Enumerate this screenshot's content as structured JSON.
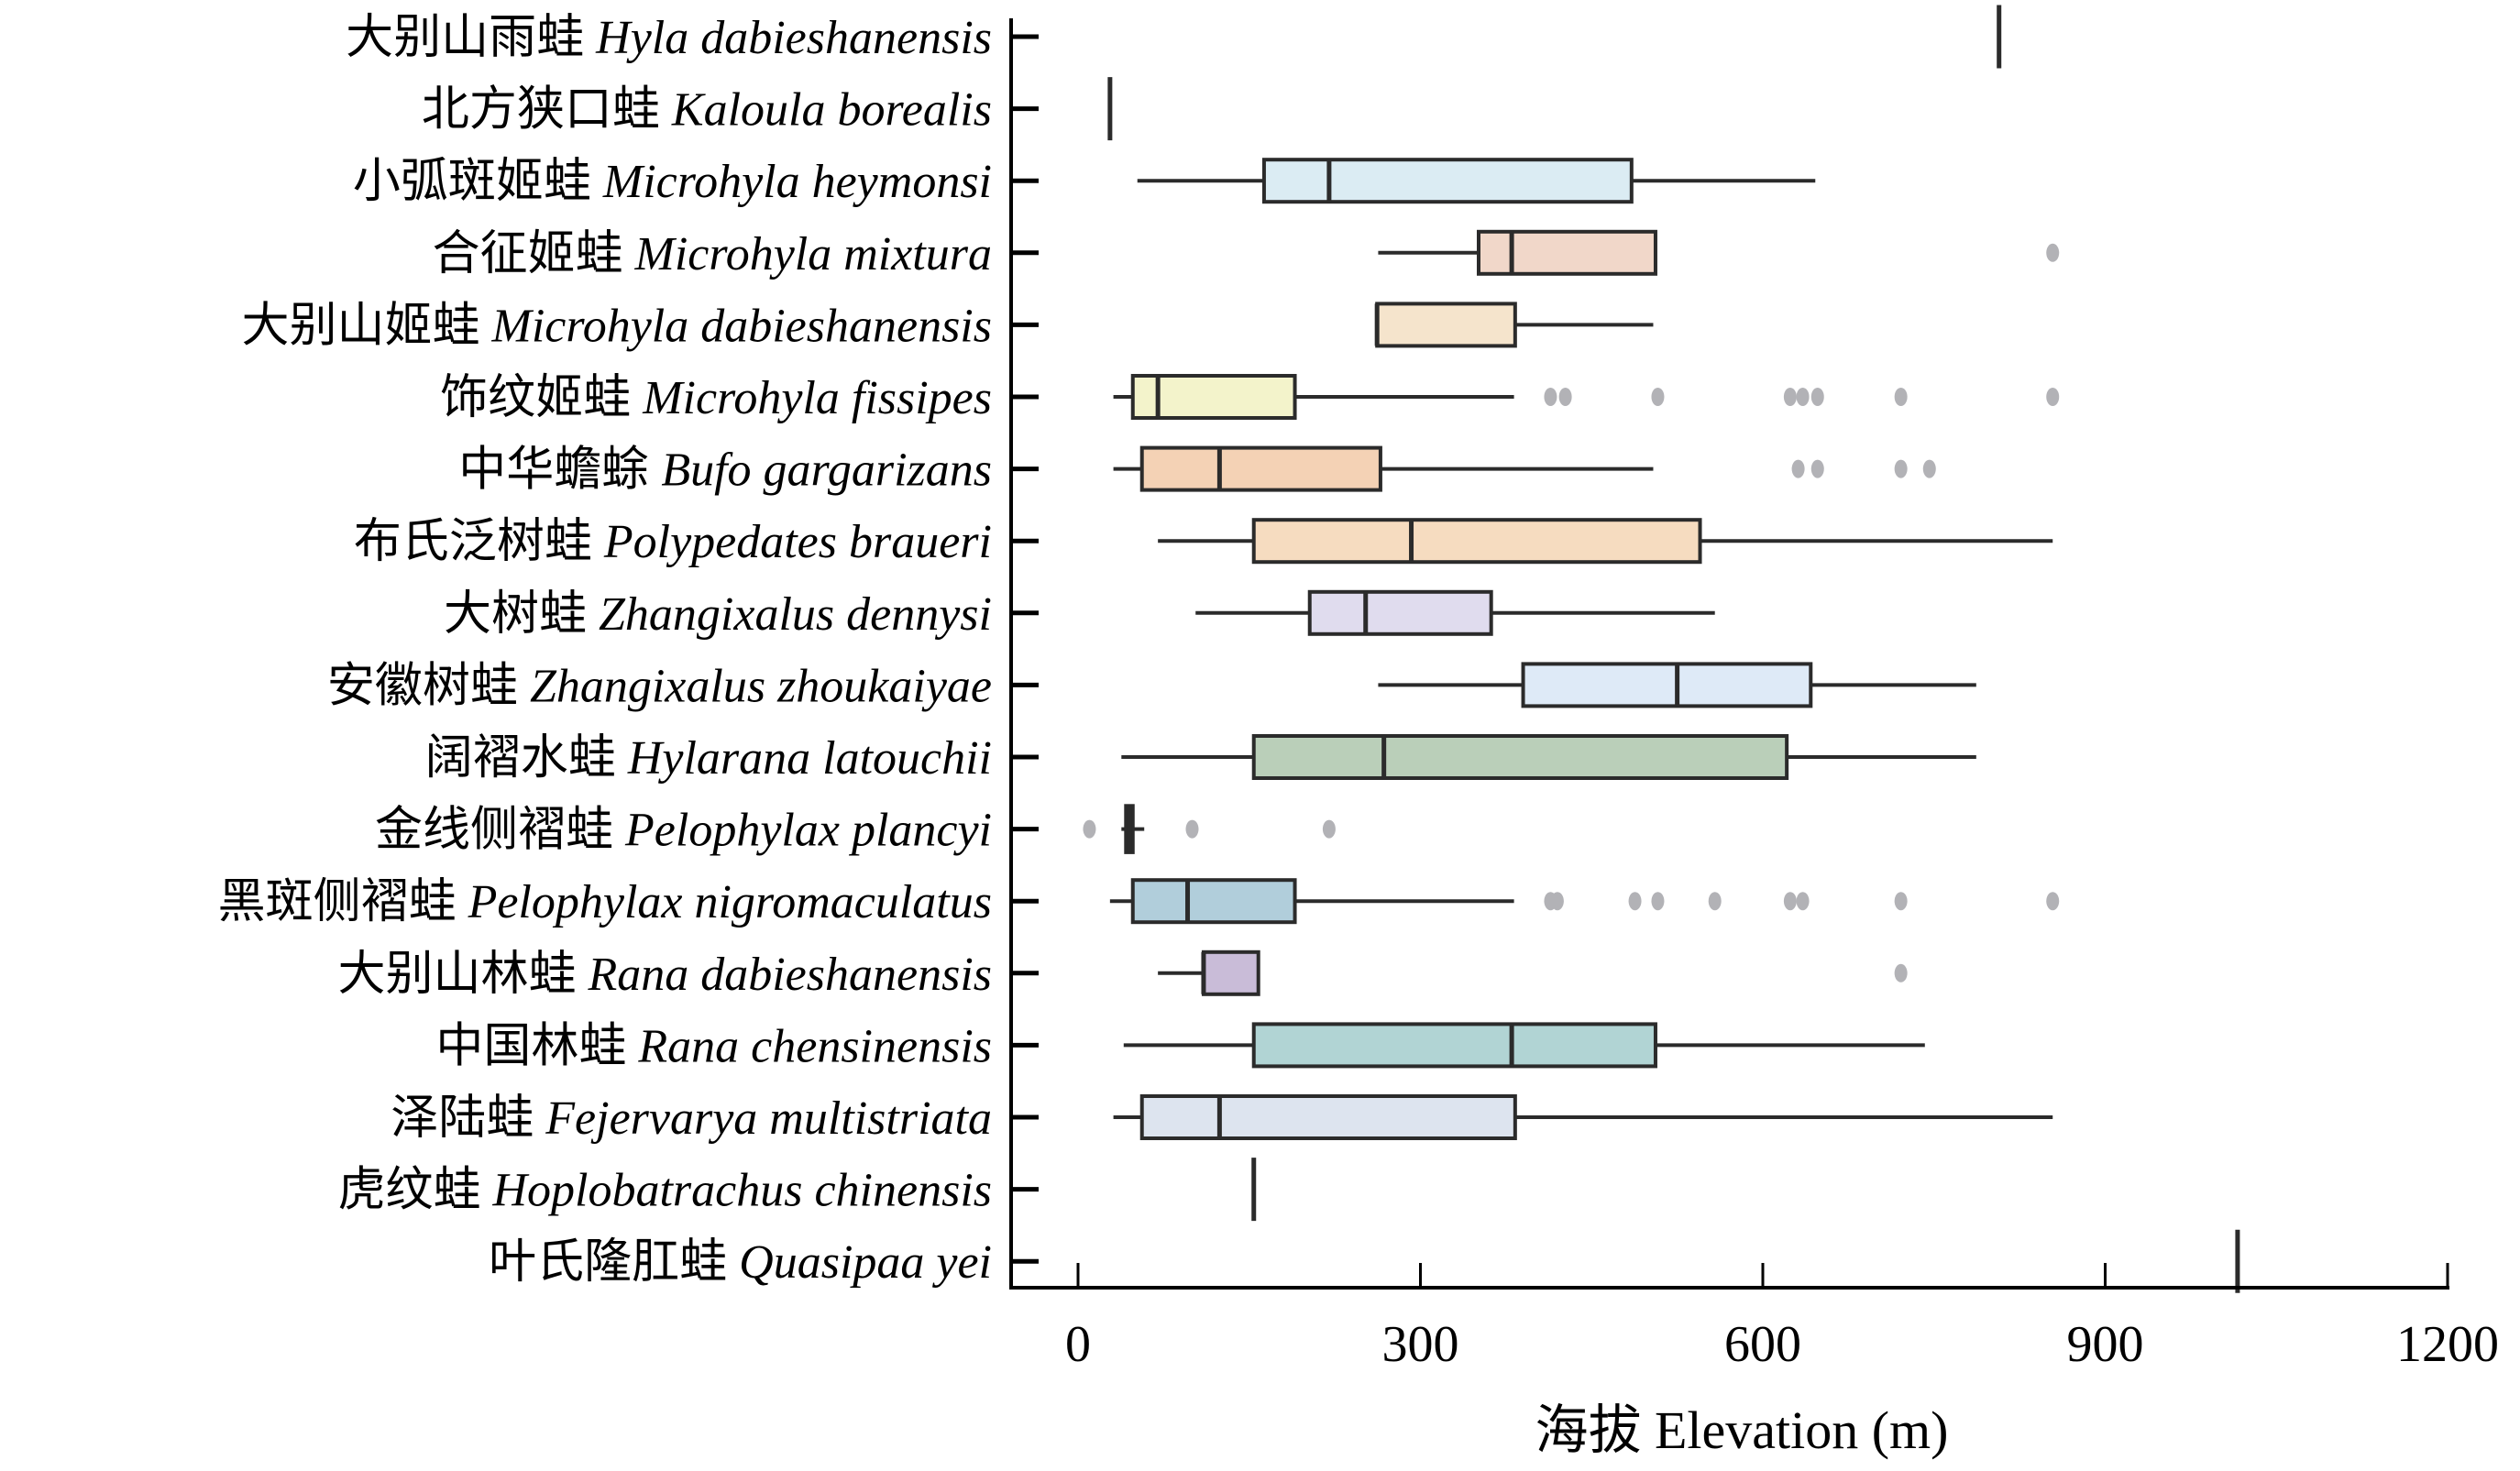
{
  "chart_data": {
    "type": "boxplot",
    "orientation": "horizontal",
    "xlabel": "海拔 Elevation (m)",
    "xlim": [
      -40,
      1200
    ],
    "xticks": [
      0,
      300,
      600,
      900,
      1200
    ],
    "xtick_labels": [
      "0",
      "300",
      "600",
      "900",
      "1200"
    ],
    "grid": false,
    "series": [
      {
        "cn": "大别山雨蛙",
        "latin": "Hyla dabieshanensis",
        "min": 807,
        "q1": 807,
        "median": 807,
        "q3": 807,
        "max": 807,
        "outliers": [],
        "color": "#ffffff"
      },
      {
        "cn": "北方狭口蛙",
        "latin": "Kaloula borealis",
        "min": 28,
        "q1": 28,
        "median": 28,
        "q3": 28,
        "max": 28,
        "outliers": [],
        "color": "#ffffff"
      },
      {
        "cn": "小弧斑姬蛙",
        "latin": "Microhyla heymonsi",
        "min": 52,
        "q1": 163,
        "median": 220,
        "q3": 485,
        "max": 646,
        "outliers": [],
        "color": "#dbecf3"
      },
      {
        "cn": "合征姬蛙",
        "latin": "Microhyla mixtura",
        "min": 263,
        "q1": 351,
        "median": 380,
        "q3": 506,
        "max": 506,
        "outliers": [
          854
        ],
        "color": "#f1d7c9"
      },
      {
        "cn": "大别山姬蛙",
        "latin": "Microhyla dabieshanensis",
        "min": 262,
        "q1": 262,
        "median": 262,
        "q3": 383,
        "max": 504,
        "outliers": [],
        "color": "#f5e4cc"
      },
      {
        "cn": "饰纹姬蛙",
        "latin": "Microhyla fissipes",
        "min": 31,
        "q1": 48,
        "median": 70,
        "q3": 190,
        "max": 382,
        "outliers": [
          414,
          427,
          508,
          624,
          635,
          648,
          721,
          854
        ],
        "color": "#f3f3cb"
      },
      {
        "cn": "中华蟾蜍",
        "latin": "Bufo gargarizans",
        "min": 31,
        "q1": 56,
        "median": 124,
        "q3": 265,
        "max": 504,
        "outliers": [
          631,
          648,
          721,
          746
        ],
        "color": "#f4d2b5"
      },
      {
        "cn": "布氏泛树蛙",
        "latin": "Polypedates braueri",
        "min": 70,
        "q1": 154,
        "median": 292,
        "q3": 545,
        "max": 854,
        "outliers": [],
        "color": "#f6dcc0"
      },
      {
        "cn": "大树蛙",
        "latin": "Zhangixalus dennysi",
        "min": 103,
        "q1": 203,
        "median": 252,
        "q3": 362,
        "max": 558,
        "outliers": [],
        "color": "#e0dcee"
      },
      {
        "cn": "安徽树蛙",
        "latin": "Zhangixalus zhoukaiyae",
        "min": 263,
        "q1": 390,
        "median": 525,
        "q3": 642,
        "max": 787,
        "outliers": [],
        "color": "#deeaf7"
      },
      {
        "cn": "阔褶水蛙",
        "latin": "Hylarana latouchii",
        "min": 38,
        "q1": 154,
        "median": 268,
        "q3": 621,
        "max": 787,
        "outliers": [],
        "color": "#bacfb9"
      },
      {
        "cn": "金线侧褶蛙",
        "latin": "Pelophylax plancyi",
        "min": 38,
        "q1": 42,
        "median": 45,
        "q3": 48,
        "max": 58,
        "outliers": [
          10,
          100,
          220
        ],
        "color": "#ffffff"
      },
      {
        "cn": "黑斑侧褶蛙",
        "latin": "Pelophylax nigromaculatus",
        "min": 28,
        "q1": 48,
        "median": 96,
        "q3": 190,
        "max": 382,
        "outliers": [
          414,
          420,
          488,
          508,
          558,
          624,
          635,
          721,
          854
        ],
        "color": "#b1cedb"
      },
      {
        "cn": "大别山林蛙",
        "latin": "Rana dabieshanensis",
        "min": 70,
        "q1": 110,
        "median": 110,
        "q3": 158,
        "max": 158,
        "outliers": [
          721
        ],
        "color": "#c9bcd8"
      },
      {
        "cn": "中国林蛙",
        "latin": "Rana chensinensis",
        "min": 40,
        "q1": 154,
        "median": 380,
        "q3": 506,
        "max": 742,
        "outliers": [],
        "color": "#b1d4d4"
      },
      {
        "cn": "泽陆蛙",
        "latin": "Fejervarya multistriata",
        "min": 31,
        "q1": 56,
        "median": 124,
        "q3": 383,
        "max": 854,
        "outliers": [],
        "color": "#dde4ef"
      },
      {
        "cn": "虎纹蛙",
        "latin": "Hoplobatrachus chinensis",
        "min": 154,
        "q1": 154,
        "median": 154,
        "q3": 154,
        "max": 154,
        "outliers": [],
        "color": "#ffffff"
      },
      {
        "cn": "叶氏隆肛蛙",
        "latin": "Quasipaa yei",
        "min": 1016,
        "q1": 1016,
        "median": 1016,
        "q3": 1016,
        "max": 1016,
        "outliers": [],
        "color": "#ffffff"
      }
    ],
    "colors": {
      "line": "#2b2b2b",
      "outlier": "#b2b2b6",
      "axis": "#000000"
    }
  }
}
